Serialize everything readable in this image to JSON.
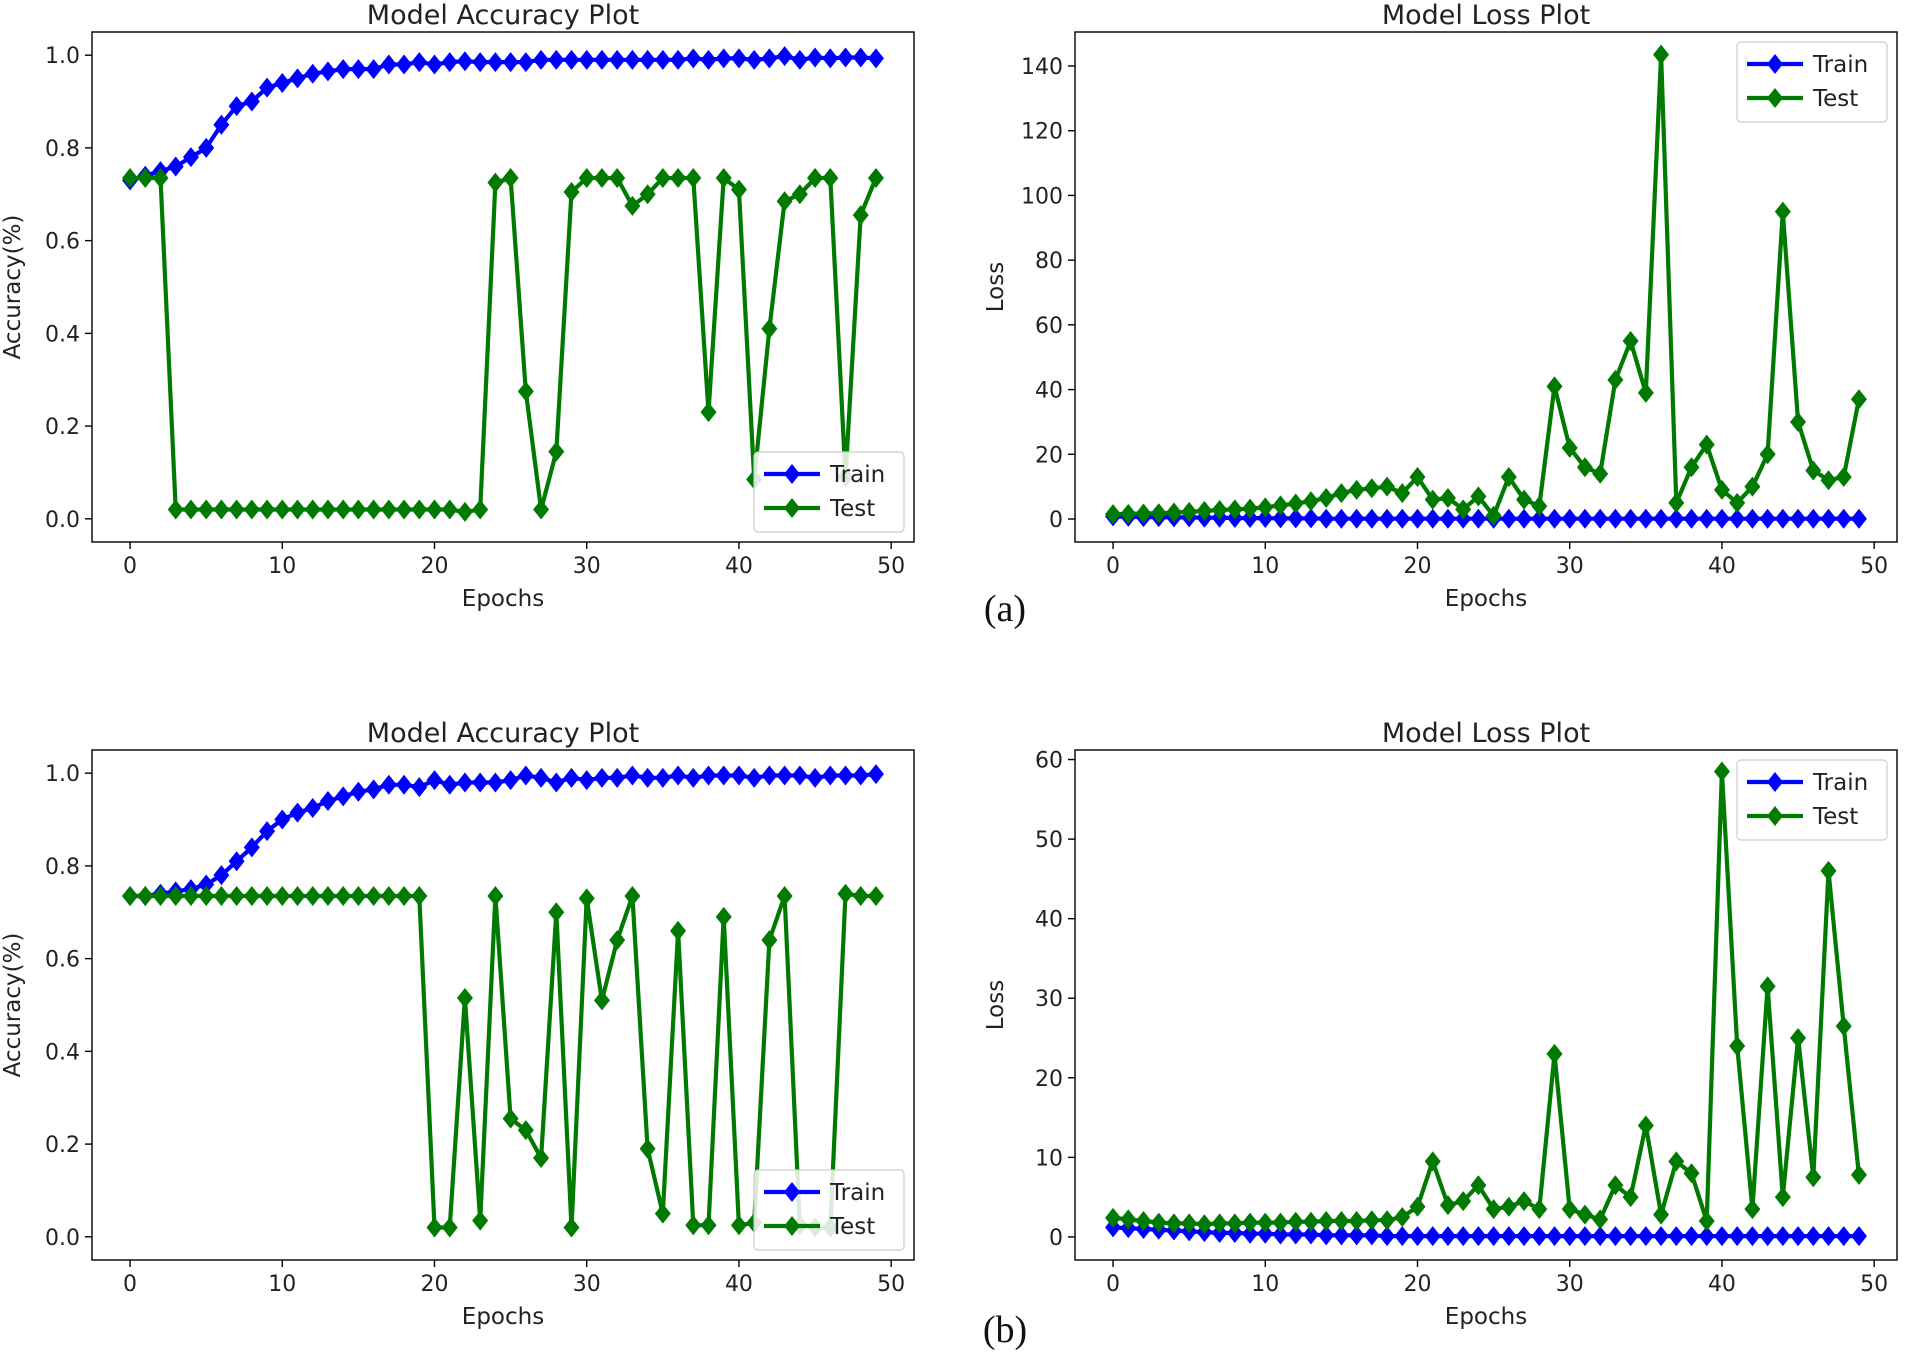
{
  "captions": {
    "a": "(a)",
    "b": "(b)"
  },
  "chart_data": [
    {
      "id": "a-accuracy",
      "type": "line",
      "title": "Model Accuracy Plot",
      "xlabel": "Epochs",
      "ylabel": "Accuracy(%)",
      "xlim": [
        -2.5,
        51.5
      ],
      "ylim": [
        -0.05,
        1.05
      ],
      "xticks": [
        0,
        10,
        20,
        30,
        40,
        50
      ],
      "yticks": [
        0.0,
        0.2,
        0.4,
        0.6,
        0.8,
        1.0
      ],
      "ytick_labels": [
        "0.0",
        "0.2",
        "0.4",
        "0.6",
        "0.8",
        "1.0"
      ],
      "legend_position": "lower-right",
      "series": [
        {
          "name": "Train",
          "color": "#0000ff",
          "values": [
            0.73,
            0.74,
            0.75,
            0.76,
            0.78,
            0.8,
            0.85,
            0.89,
            0.9,
            0.93,
            0.94,
            0.95,
            0.96,
            0.965,
            0.97,
            0.97,
            0.97,
            0.98,
            0.98,
            0.985,
            0.98,
            0.985,
            0.987,
            0.985,
            0.985,
            0.985,
            0.985,
            0.99,
            0.99,
            0.99,
            0.99,
            0.99,
            0.99,
            0.99,
            0.99,
            0.99,
            0.99,
            0.993,
            0.99,
            0.993,
            0.993,
            0.99,
            0.993,
            0.998,
            0.99,
            0.995,
            0.993,
            0.995,
            0.995,
            0.993
          ]
        },
        {
          "name": "Test",
          "color": "#007a00",
          "values": [
            0.735,
            0.735,
            0.735,
            0.02,
            0.02,
            0.02,
            0.02,
            0.02,
            0.02,
            0.02,
            0.02,
            0.02,
            0.02,
            0.02,
            0.02,
            0.02,
            0.02,
            0.02,
            0.02,
            0.02,
            0.02,
            0.02,
            0.015,
            0.02,
            0.725,
            0.735,
            0.275,
            0.02,
            0.145,
            0.705,
            0.735,
            0.735,
            0.735,
            0.675,
            0.7,
            0.735,
            0.735,
            0.735,
            0.23,
            0.735,
            0.71,
            0.085,
            0.41,
            0.685,
            0.7,
            0.735,
            0.735,
            0.09,
            0.655,
            0.735
          ]
        }
      ]
    },
    {
      "id": "a-loss",
      "type": "line",
      "title": "Model Loss Plot",
      "xlabel": "Epochs",
      "ylabel": "Loss",
      "xlim": [
        -2.5,
        51.5
      ],
      "ylim": [
        -7.1,
        150.5
      ],
      "xticks": [
        0,
        10,
        20,
        30,
        40,
        50
      ],
      "yticks": [
        0,
        20,
        40,
        60,
        80,
        100,
        120,
        140
      ],
      "ytick_labels": [
        "0",
        "20",
        "40",
        "60",
        "80",
        "100",
        "120",
        "140"
      ],
      "legend_position": "upper-right",
      "series": [
        {
          "name": "Train",
          "color": "#0000ff",
          "values": [
            0.8,
            0.7,
            0.6,
            0.6,
            0.5,
            0.5,
            0.4,
            0.4,
            0.3,
            0.3,
            0.3,
            0.2,
            0.2,
            0.2,
            0.1,
            0.1,
            0.1,
            0.1,
            0.1,
            0.1,
            0.1,
            0.1,
            0.1,
            0.1,
            0.1,
            0.1,
            0.1,
            0.1,
            0.1,
            0.1,
            0.1,
            0.1,
            0.1,
            0.1,
            0.1,
            0.1,
            0.1,
            0.1,
            0.1,
            0.1,
            0.1,
            0.1,
            0.1,
            0.1,
            0.1,
            0.1,
            0.1,
            0.1,
            0.1,
            0.1
          ]
        },
        {
          "name": "Test",
          "color": "#007a00",
          "values": [
            1.5,
            1.6,
            1.7,
            1.8,
            2.0,
            2.2,
            2.5,
            2.8,
            3.0,
            3.2,
            3.6,
            4.2,
            4.8,
            5.5,
            6.5,
            8,
            9,
            9.5,
            10,
            8,
            13,
            6,
            6.5,
            3,
            7,
            1,
            13,
            6,
            4,
            41,
            22,
            16,
            14,
            43,
            55,
            39,
            143.5,
            5,
            16,
            23,
            9,
            5,
            10,
            20,
            95,
            30,
            15,
            12,
            13,
            37
          ]
        }
      ]
    },
    {
      "id": "b-accuracy",
      "type": "line",
      "title": "Model Accuracy Plot",
      "xlabel": "Epochs",
      "ylabel": "Accuracy(%)",
      "xlim": [
        -2.5,
        51.5
      ],
      "ylim": [
        -0.05,
        1.05
      ],
      "xticks": [
        0,
        10,
        20,
        30,
        40,
        50
      ],
      "yticks": [
        0.0,
        0.2,
        0.4,
        0.6,
        0.8,
        1.0
      ],
      "ytick_labels": [
        "0.0",
        "0.2",
        "0.4",
        "0.6",
        "0.8",
        "1.0"
      ],
      "legend_position": "lower-right",
      "series": [
        {
          "name": "Train",
          "color": "#0000ff",
          "values": [
            0.735,
            0.735,
            0.74,
            0.745,
            0.75,
            0.76,
            0.78,
            0.81,
            0.84,
            0.875,
            0.9,
            0.915,
            0.925,
            0.94,
            0.95,
            0.96,
            0.965,
            0.975,
            0.975,
            0.97,
            0.985,
            0.975,
            0.98,
            0.98,
            0.98,
            0.985,
            0.995,
            0.99,
            0.98,
            0.99,
            0.985,
            0.99,
            0.99,
            0.995,
            0.99,
            0.99,
            0.995,
            0.99,
            0.995,
            0.995,
            0.995,
            0.99,
            0.995,
            0.995,
            0.995,
            0.99,
            0.995,
            0.995,
            0.995,
            0.998
          ]
        },
        {
          "name": "Test",
          "color": "#007a00",
          "values": [
            0.735,
            0.735,
            0.735,
            0.735,
            0.735,
            0.735,
            0.735,
            0.735,
            0.735,
            0.735,
            0.735,
            0.735,
            0.735,
            0.735,
            0.735,
            0.735,
            0.735,
            0.735,
            0.735,
            0.735,
            0.02,
            0.02,
            0.515,
            0.035,
            0.735,
            0.255,
            0.23,
            0.17,
            0.7,
            0.02,
            0.73,
            0.51,
            0.64,
            0.735,
            0.19,
            0.05,
            0.66,
            0.025,
            0.025,
            0.69,
            0.025,
            0.03,
            0.64,
            0.735,
            0.025,
            0.02,
            0.02,
            0.74,
            0.735,
            0.735
          ]
        }
      ]
    },
    {
      "id": "b-loss",
      "type": "line",
      "title": "Model Loss Plot",
      "xlabel": "Epochs",
      "ylabel": "Loss",
      "xlim": [
        -2.5,
        51.5
      ],
      "ylim": [
        -2.9,
        61.2
      ],
      "xticks": [
        0,
        10,
        20,
        30,
        40,
        50
      ],
      "yticks": [
        0,
        10,
        20,
        30,
        40,
        50,
        60
      ],
      "ytick_labels": [
        "0",
        "10",
        "20",
        "30",
        "40",
        "50",
        "60"
      ],
      "legend_position": "upper-right",
      "series": [
        {
          "name": "Train",
          "color": "#0000ff",
          "values": [
            1.2,
            1.1,
            1.0,
            0.9,
            0.8,
            0.7,
            0.6,
            0.5,
            0.5,
            0.4,
            0.4,
            0.3,
            0.3,
            0.3,
            0.2,
            0.2,
            0.2,
            0.2,
            0.1,
            0.1,
            0.1,
            0.1,
            0.1,
            0.1,
            0.1,
            0.1,
            0.1,
            0.1,
            0.1,
            0.1,
            0.1,
            0.1,
            0.1,
            0.1,
            0.1,
            0.1,
            0.1,
            0.1,
            0.1,
            0.1,
            0.1,
            0.1,
            0.1,
            0.1,
            0.1,
            0.1,
            0.1,
            0.1,
            0.1,
            0.1
          ]
        },
        {
          "name": "Test",
          "color": "#007a00",
          "values": [
            2.4,
            2.2,
            2.0,
            1.8,
            1.7,
            1.7,
            1.6,
            1.7,
            1.7,
            1.8,
            1.8,
            1.8,
            1.9,
            1.9,
            2.0,
            2.0,
            2.0,
            2.1,
            2.1,
            2.5,
            3.8,
            9.5,
            4.0,
            4.5,
            6.5,
            3.5,
            3.8,
            4.5,
            3.5,
            23.0,
            3.5,
            2.8,
            2.2,
            6.5,
            5.0,
            14.0,
            2.8,
            9.5,
            8.0,
            2.0,
            58.5,
            24.0,
            3.5,
            31.5,
            5.0,
            25.0,
            7.5,
            46.0,
            26.5,
            7.8
          ]
        }
      ]
    }
  ]
}
